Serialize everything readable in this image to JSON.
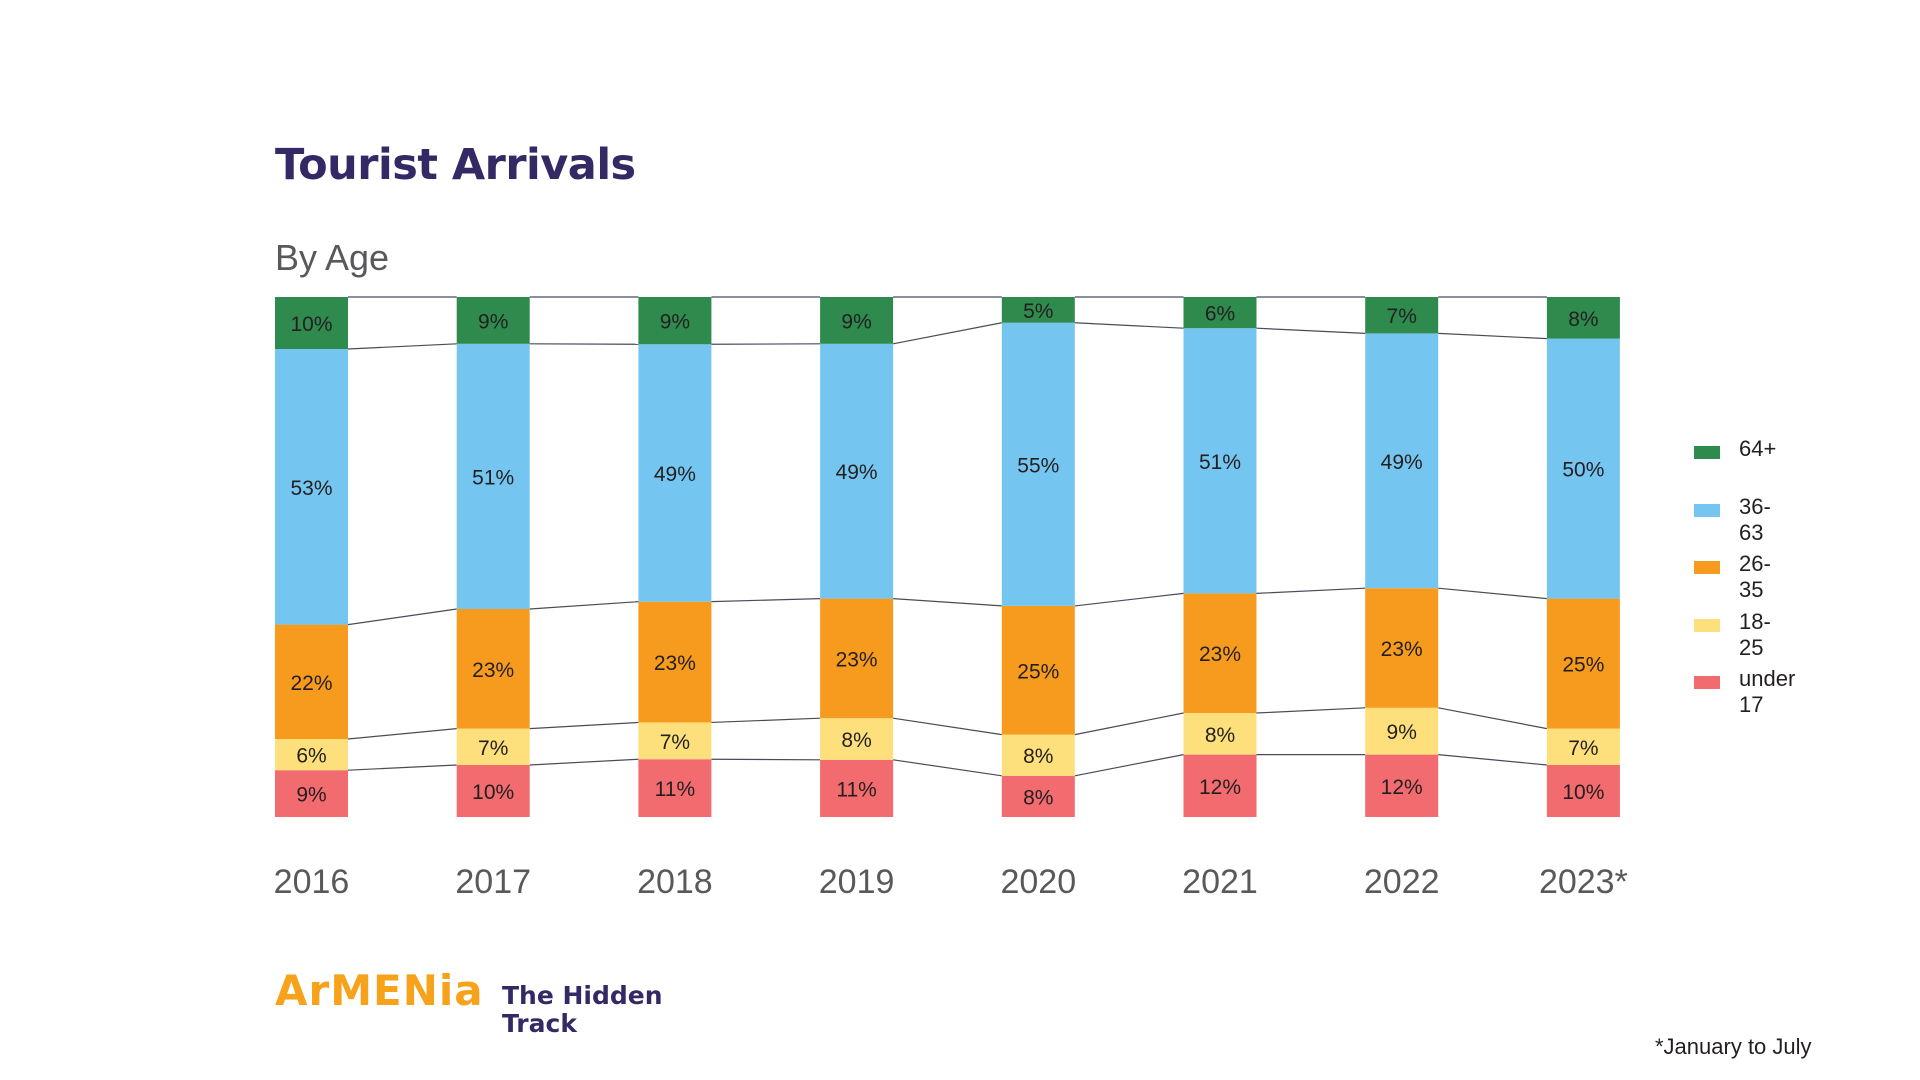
{
  "chart_data": {
    "type": "bar",
    "stacked": true,
    "normalized": true,
    "title": "Tourist Arrivals",
    "subtitle": "By Age",
    "categories": [
      "2016",
      "2017",
      "2018",
      "2019",
      "2020",
      "2021",
      "2022",
      "2023*"
    ],
    "series": [
      {
        "name": "under 17",
        "color": "#f16b6f",
        "values": [
          9,
          10,
          11,
          11,
          8,
          12,
          12,
          10
        ]
      },
      {
        "name": "18-25",
        "color": "#fde07c",
        "values": [
          6,
          7,
          7,
          8,
          8,
          8,
          9,
          7
        ]
      },
      {
        "name": "26-35",
        "color": "#f79b1e",
        "values": [
          22,
          23,
          23,
          23,
          25,
          23,
          23,
          25
        ]
      },
      {
        "name": "36-63",
        "color": "#74c6f1",
        "values": [
          53,
          51,
          49,
          49,
          55,
          51,
          49,
          50
        ]
      },
      {
        "name": "64+",
        "color": "#2f8a4e",
        "values": [
          10,
          9,
          9,
          9,
          5,
          6,
          7,
          8
        ]
      }
    ],
    "value_suffix": "%",
    "legend_position": "right",
    "connector_lines": true,
    "grid": false
  },
  "legend": [
    {
      "label": "64+",
      "color": "#2f8a4e"
    },
    {
      "label": "36-63",
      "color": "#74c6f1"
    },
    {
      "label": "26-35",
      "color": "#f79b1e"
    },
    {
      "label": "18-25",
      "color": "#fde07c"
    },
    {
      "label": "under 17",
      "color": "#f16b6f"
    }
  ],
  "footnote": "*January to July",
  "logo": {
    "name": "ArMENia",
    "tagline": "The Hidden Track",
    "brand_color": "#f7a21b",
    "tagline_color": "#342865"
  }
}
